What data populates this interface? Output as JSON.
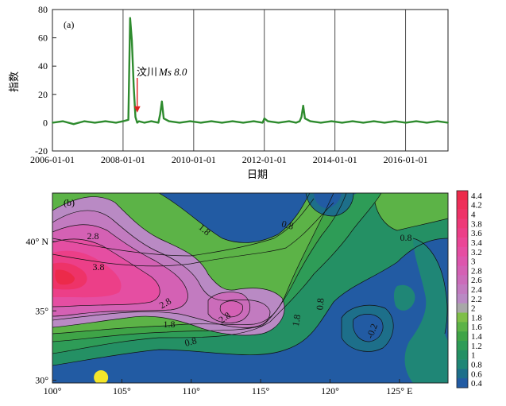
{
  "chart_data": [
    {
      "type": "line",
      "panel_label": "(a)",
      "xlabel": "日期",
      "ylabel": "指数",
      "ylim": [
        -20,
        80
      ],
      "yticks": [
        "80",
        "60",
        "40",
        "20",
        "0",
        "-20"
      ],
      "ytick_values": [
        80,
        60,
        40,
        20,
        0,
        -20
      ],
      "xticks": [
        "2006-01-01",
        "2008-01-01",
        "2010-01-01",
        "2012-01-01",
        "2014-01-01",
        "2016-01-01"
      ],
      "xtick_years": [
        2006,
        2008,
        2010,
        2012,
        2014,
        2016
      ],
      "xlim_years": [
        2006,
        2017.2
      ],
      "series": [
        {
          "name": "指数",
          "color": "#2e8b2e",
          "x_years": [
            2006.0,
            2006.3,
            2006.6,
            2006.9,
            2007.2,
            2007.5,
            2007.8,
            2008.0,
            2008.15,
            2008.2,
            2008.25,
            2008.3,
            2008.35,
            2008.4,
            2008.45,
            2008.6,
            2008.8,
            2009.0,
            2009.05,
            2009.1,
            2009.15,
            2009.3,
            2009.6,
            2009.9,
            2010.2,
            2010.5,
            2010.8,
            2011.1,
            2011.4,
            2011.7,
            2011.95,
            2012.0,
            2012.1,
            2012.4,
            2012.7,
            2012.9,
            2013.0,
            2013.05,
            2013.1,
            2013.15,
            2013.3,
            2013.6,
            2013.9,
            2014.2,
            2014.5,
            2014.8,
            2015.1,
            2015.4,
            2015.7,
            2016.0,
            2016.3,
            2016.6,
            2016.9,
            2017.2
          ],
          "values": [
            0,
            1,
            -1,
            1,
            0,
            1,
            0,
            1,
            2,
            74,
            58,
            26,
            4,
            0,
            1,
            0,
            1,
            0,
            6,
            15,
            3,
            1,
            0,
            1,
            0,
            1,
            0,
            1,
            0,
            1,
            0,
            3,
            1,
            0,
            1,
            0,
            1,
            4,
            12,
            3,
            1,
            0,
            1,
            0,
            1,
            0,
            1,
            0,
            1,
            0,
            1,
            0,
            1,
            0
          ]
        }
      ],
      "annotation": {
        "text_prefix": "汶川",
        "text_magnitude": "Ms 8.0",
        "arrow_year": 2008.4,
        "arrow_value": 6,
        "arrow_color": "#e02020"
      }
    },
    {
      "type": "heatmap",
      "panel_label": "(b)",
      "xticks": [
        "100°",
        "105°",
        "110°",
        "115°",
        "120°",
        "125° E"
      ],
      "xtick_values": [
        100,
        105,
        110,
        115,
        120,
        125
      ],
      "yticks": [
        "40° N",
        "35°",
        "30°"
      ],
      "ytick_values": [
        40,
        35,
        30
      ],
      "xlim": [
        100,
        128.5
      ],
      "ylim": [
        29.8,
        43.5
      ],
      "contour_labels": [
        "2.8",
        "3.8",
        "2.8",
        "2.8",
        "1.8",
        "0.8",
        "1.8",
        "0.8",
        "0.8",
        "1.8",
        "0.8",
        "-0.2"
      ],
      "colorbar": {
        "labels": [
          "4.4",
          "4.2",
          "4",
          "3.8",
          "3.6",
          "3.4",
          "3.2",
          "3",
          "2.8",
          "2.6",
          "2.4",
          "2.2",
          "2",
          "1.8",
          "1.6",
          "1.4",
          "1.2",
          "1",
          "0.8",
          "0.6",
          "0.4"
        ],
        "colors": [
          "#ec2a4a",
          "#ee2f5a",
          "#ee3368",
          "#ee3a78",
          "#ec3f88",
          "#ea4696",
          "#e54ea2",
          "#dd56ad",
          "#d461b4",
          "#cb6cba",
          "#c27bc0",
          "#b98ac4",
          "#a8a8a8",
          "#7fbf48",
          "#5cb347",
          "#3fa447",
          "#2e9c57",
          "#249064",
          "#1f8676",
          "#1d6f8a",
          "#225ba3"
        ]
      },
      "marker": {
        "shape": "circle",
        "color": "#f4e62a",
        "lon": 103.5,
        "lat": 30.2
      }
    }
  ]
}
